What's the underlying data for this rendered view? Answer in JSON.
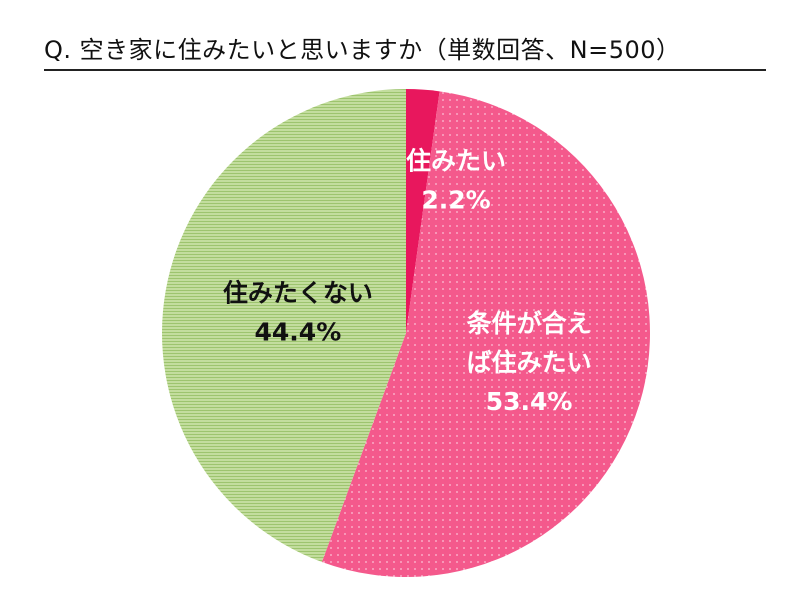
{
  "chart_data": {
    "type": "pie",
    "title": "Q. 空き家に住みたいと思いますか（単数回答、N=500）",
    "start_angle_deg": 0,
    "direction": "clockwise",
    "slices": [
      {
        "label_lines": [
          "住みたい"
        ],
        "value": 2.2,
        "value_label": "2.2%",
        "color": "#e8175d",
        "pattern": "none",
        "label_color": "#ffffff"
      },
      {
        "label_lines": [
          "条件が合え",
          "ば住みたい"
        ],
        "value": 53.4,
        "value_label": "53.4%",
        "color": "#f4598c",
        "pattern": "dots",
        "label_color": "#ffffff"
      },
      {
        "label_lines": [
          "住みたくない"
        ],
        "value": 44.4,
        "value_label": "44.4%",
        "color": "#c3dd9e",
        "pattern": "horizontal-lines",
        "label_color": "#111111"
      }
    ]
  }
}
